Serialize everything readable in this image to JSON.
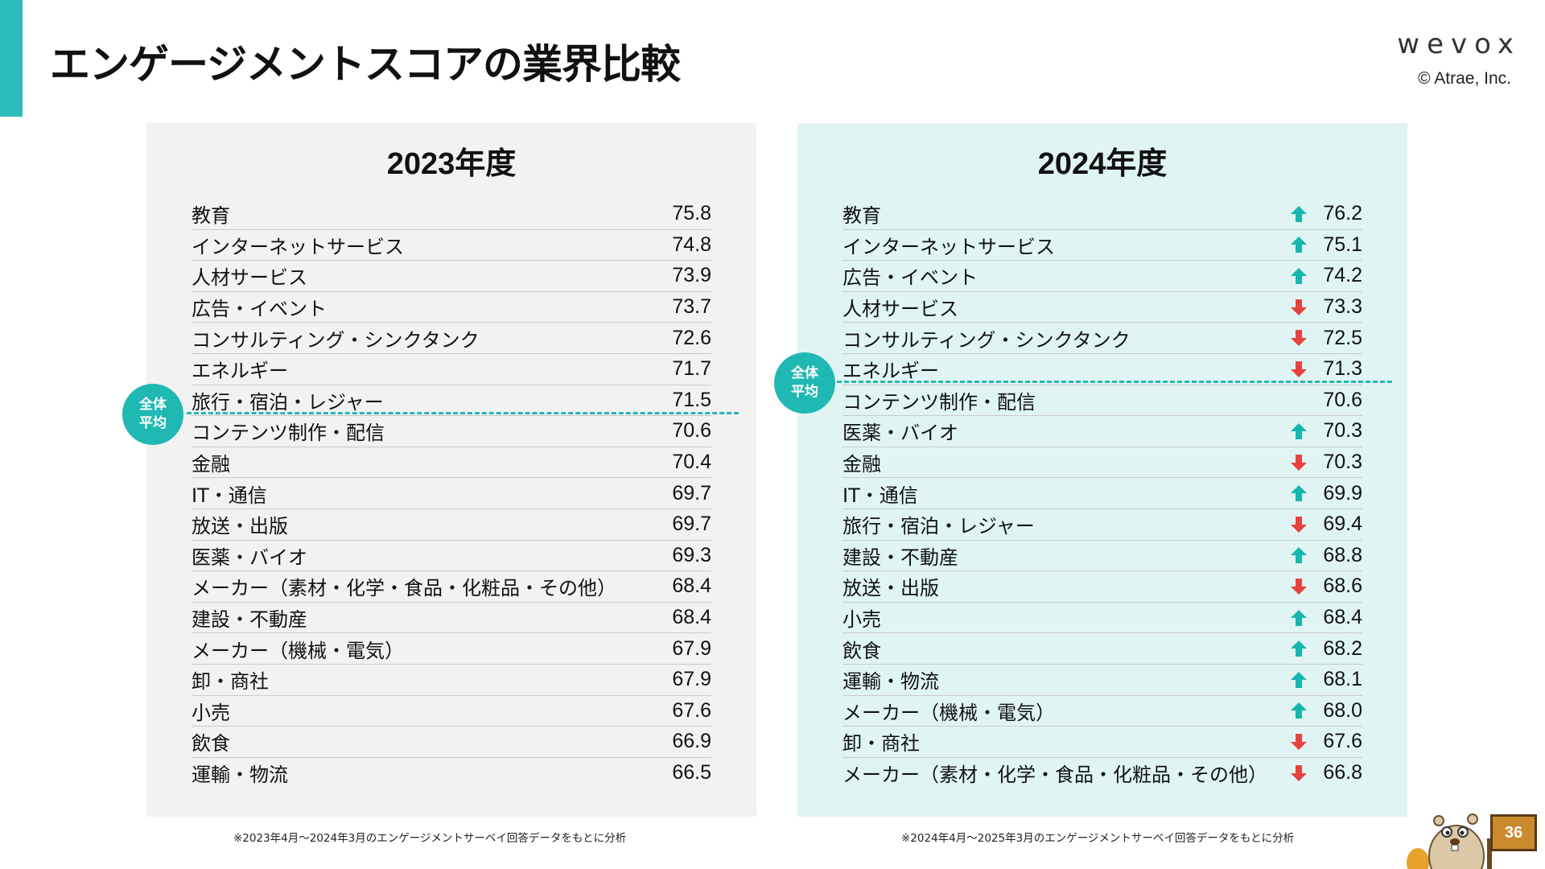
{
  "header": {
    "title": "エンゲージメントスコアの業界比較",
    "brand_logo": "wevox",
    "copyright": "© Atrae, Inc."
  },
  "colors": {
    "accent": "#2bbdba",
    "panel_2023": "#f2f2f2",
    "panel_2024": "#e0f5f3",
    "arrow_up": "#17b5ad",
    "arrow_down": "#e8423f"
  },
  "average_badge": {
    "line1": "全体",
    "line2": "平均"
  },
  "panel_2023": {
    "title": "2023年度",
    "footnote": "※2023年4月〜2024年3月のエンゲージメントサーベイ回答データをもとに分析",
    "rows": [
      {
        "label": "教育",
        "value": "75.8"
      },
      {
        "label": "インターネットサービス",
        "value": "74.8"
      },
      {
        "label": "人材サービス",
        "value": "73.9"
      },
      {
        "label": "広告・イベント",
        "value": "73.7"
      },
      {
        "label": "コンサルティング・シンクタンク",
        "value": "72.6"
      },
      {
        "label": "エネルギー",
        "value": "71.7"
      },
      {
        "label": "旅行・宿泊・レジャー",
        "value": "71.5"
      },
      {
        "label": "コンテンツ制作・配信",
        "value": "70.6"
      },
      {
        "label": "金融",
        "value": "70.4"
      },
      {
        "label": "IT・通信",
        "value": "69.7"
      },
      {
        "label": "放送・出版",
        "value": "69.7"
      },
      {
        "label": "医薬・バイオ",
        "value": "69.3"
      },
      {
        "label": "メーカー（素材・化学・食品・化粧品・その他）",
        "value": "68.4"
      },
      {
        "label": "建設・不動産",
        "value": "68.4"
      },
      {
        "label": "メーカー（機械・電気）",
        "value": "67.9"
      },
      {
        "label": "卸・商社",
        "value": "67.9"
      },
      {
        "label": "小売",
        "value": "67.6"
      },
      {
        "label": "飲食",
        "value": "66.9"
      },
      {
        "label": "運輸・物流",
        "value": "66.5"
      }
    ]
  },
  "panel_2024": {
    "title": "2024年度",
    "footnote": "※2024年4月〜2025年3月のエンゲージメントサーベイ回答データをもとに分析",
    "rows": [
      {
        "label": "教育",
        "value": "76.2",
        "trend": "up"
      },
      {
        "label": "インターネットサービス",
        "value": "75.1",
        "trend": "up"
      },
      {
        "label": "広告・イベント",
        "value": "74.2",
        "trend": "up"
      },
      {
        "label": "人材サービス",
        "value": "73.3",
        "trend": "down"
      },
      {
        "label": "コンサルティング・シンクタンク",
        "value": "72.5",
        "trend": "down"
      },
      {
        "label": "エネルギー",
        "value": "71.3",
        "trend": "down"
      },
      {
        "label": "コンテンツ制作・配信",
        "value": "70.6",
        "trend": "none"
      },
      {
        "label": "医薬・バイオ",
        "value": "70.3",
        "trend": "up"
      },
      {
        "label": "金融",
        "value": "70.3",
        "trend": "down"
      },
      {
        "label": "IT・通信",
        "value": "69.9",
        "trend": "up"
      },
      {
        "label": "旅行・宿泊・レジャー",
        "value": "69.4",
        "trend": "down"
      },
      {
        "label": "建設・不動産",
        "value": "68.8",
        "trend": "up"
      },
      {
        "label": "放送・出版",
        "value": "68.6",
        "trend": "down"
      },
      {
        "label": "小売",
        "value": "68.4",
        "trend": "up"
      },
      {
        "label": "飲食",
        "value": "68.2",
        "trend": "up"
      },
      {
        "label": "運輸・物流",
        "value": "68.1",
        "trend": "up"
      },
      {
        "label": "メーカー（機械・電気）",
        "value": "68.0",
        "trend": "up"
      },
      {
        "label": "卸・商社",
        "value": "67.6",
        "trend": "down"
      },
      {
        "label": "メーカー（素材・化学・食品・化粧品・その他）",
        "value": "66.8",
        "trend": "down"
      }
    ]
  },
  "page_number": "36"
}
